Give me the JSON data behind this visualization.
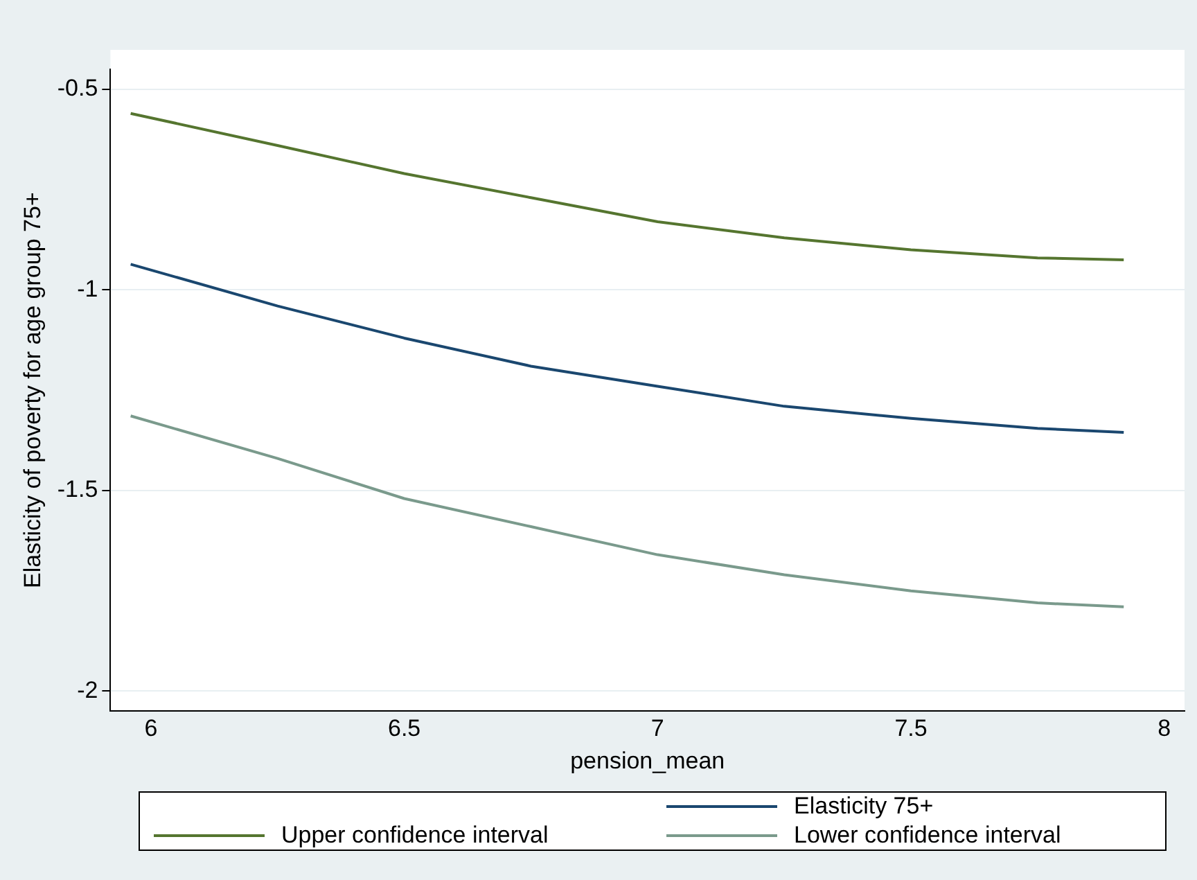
{
  "chart_data": {
    "type": "line",
    "xlabel": "pension_mean",
    "ylabel": "Elasticity of poverty for age group 75+",
    "x": [
      5.96,
      6.25,
      6.5,
      6.75,
      7,
      7.25,
      7.5,
      7.75,
      7.92
    ],
    "series": [
      {
        "name": "Elasticity 75+",
        "color": "#1a476f",
        "values": [
          -0.936,
          -1.04,
          -1.12,
          -1.19,
          -1.24,
          -1.29,
          -1.32,
          -1.345,
          -1.355
        ]
      },
      {
        "name": "Upper confidence interval",
        "color": "#55752f",
        "values": [
          -0.56,
          -0.64,
          -0.71,
          -0.77,
          -0.83,
          -0.87,
          -0.9,
          -0.92,
          -0.925
        ]
      },
      {
        "name": "Lower confidence interval",
        "color": "#7a9a8c",
        "values": [
          -1.314,
          -1.42,
          -1.52,
          -1.59,
          -1.66,
          -1.71,
          -1.75,
          -1.78,
          -1.79
        ]
      }
    ],
    "xlim": [
      5.92,
      8.04
    ],
    "xticks": [
      6,
      6.5,
      7,
      7.5,
      8
    ],
    "ylim": [
      -2.05,
      -0.45
    ],
    "yticks": [
      -2,
      -1.5,
      -1,
      -0.5
    ],
    "grid": "y",
    "legend": "bottom",
    "marker": "none",
    "line_style": "solid"
  }
}
